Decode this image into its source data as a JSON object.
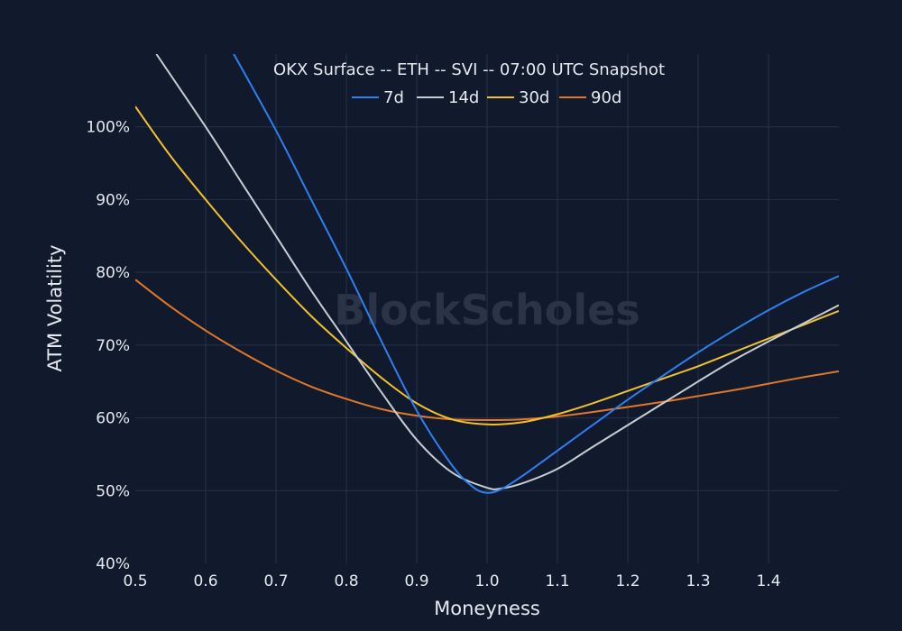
{
  "chart_data": {
    "type": "line",
    "title": "OKX Surface -- ETH -- SVI -- 07:00 UTC Snapshot",
    "xlabel": "Moneyness",
    "ylabel": "ATM Volatility",
    "xlim": [
      0.5,
      1.5
    ],
    "ylim": [
      40,
      110
    ],
    "x_ticks": [
      0.5,
      0.6,
      0.7,
      0.8,
      0.9,
      1.0,
      1.1,
      1.2,
      1.3,
      1.4
    ],
    "x_tick_labels": [
      "0.5",
      "0.6",
      "0.7",
      "0.8",
      "0.9",
      "1.0",
      "1.1",
      "1.2",
      "1.3",
      "1.4"
    ],
    "y_ticks": [
      40,
      50,
      60,
      70,
      80,
      90,
      100
    ],
    "y_tick_labels": [
      "40%",
      "50%",
      "60%",
      "70%",
      "80%",
      "90%",
      "100%"
    ],
    "grid": true,
    "legend": "top-center, horizontal",
    "watermark": "BlockScholes",
    "series": [
      {
        "name": "7d",
        "color": "#2f7ff2",
        "x": [
          0.64,
          0.7,
          0.75,
          0.8,
          0.85,
          0.9,
          0.95,
          0.98,
          1.0,
          1.02,
          1.05,
          1.1,
          1.15,
          1.2,
          1.25,
          1.3,
          1.35,
          1.4,
          1.45,
          1.5
        ],
        "y": [
          110,
          99.5,
          90,
          80.5,
          70.5,
          61,
          53.5,
          50.5,
          49.7,
          50.2,
          52,
          55.5,
          59,
          62.5,
          65.8,
          69,
          72,
          74.8,
          77.3,
          79.5
        ]
      },
      {
        "name": "14d",
        "color": "#c8ccd3",
        "x": [
          0.53,
          0.6,
          0.65,
          0.7,
          0.75,
          0.8,
          0.85,
          0.9,
          0.95,
          1.0,
          1.02,
          1.05,
          1.1,
          1.15,
          1.2,
          1.25,
          1.3,
          1.35,
          1.4,
          1.45,
          1.5
        ],
        "y": [
          110,
          100,
          92.5,
          85,
          77.5,
          70.5,
          63.5,
          57,
          52.5,
          50.4,
          50.3,
          51,
          53,
          56,
          59,
          62,
          65,
          67.9,
          70.5,
          73,
          75.5
        ]
      },
      {
        "name": "30d",
        "color": "#f2c12e",
        "x": [
          0.5,
          0.55,
          0.6,
          0.65,
          0.7,
          0.75,
          0.8,
          0.85,
          0.9,
          0.95,
          1.0,
          1.05,
          1.1,
          1.15,
          1.2,
          1.25,
          1.3,
          1.35,
          1.4,
          1.45,
          1.5
        ],
        "y": [
          102.8,
          96,
          90,
          84.3,
          79,
          74,
          69.6,
          65.5,
          62,
          59.8,
          59.1,
          59.4,
          60.5,
          62,
          63.7,
          65.4,
          67.1,
          69,
          70.9,
          72.8,
          74.7
        ]
      },
      {
        "name": "90d",
        "color": "#e0772a",
        "x": [
          0.5,
          0.55,
          0.6,
          0.65,
          0.7,
          0.75,
          0.8,
          0.85,
          0.9,
          0.95,
          1.0,
          1.05,
          1.1,
          1.15,
          1.2,
          1.25,
          1.3,
          1.35,
          1.4,
          1.45,
          1.5
        ],
        "y": [
          79,
          75.3,
          72,
          69.1,
          66.5,
          64.3,
          62.6,
          61.2,
          60.3,
          59.8,
          59.7,
          59.8,
          60.2,
          60.8,
          61.5,
          62.2,
          63,
          63.8,
          64.7,
          65.6,
          66.4
        ]
      }
    ]
  }
}
